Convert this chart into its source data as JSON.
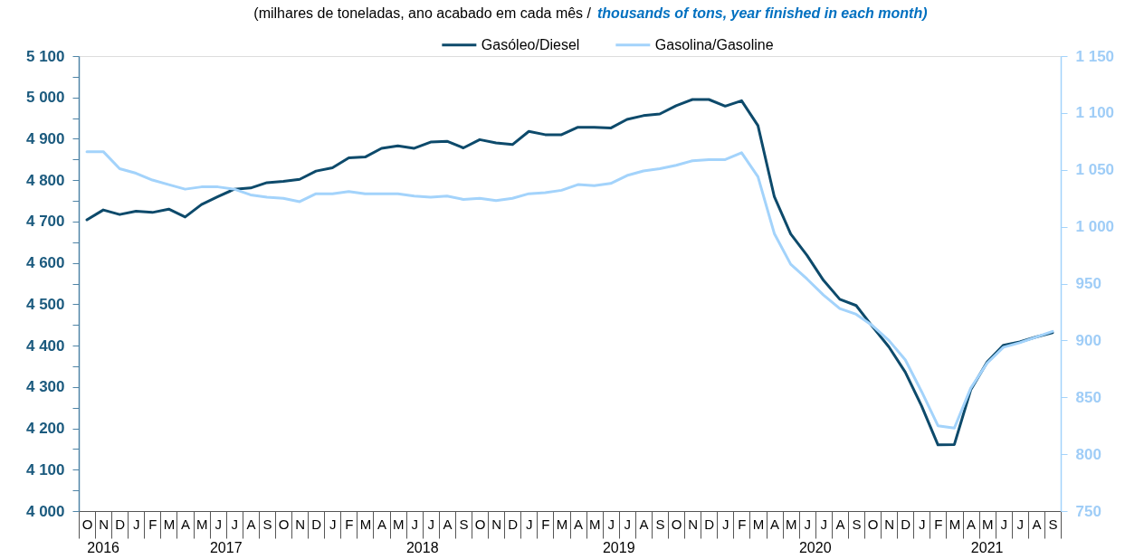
{
  "chart_data": {
    "type": "line",
    "title": "(milhares de toneladas, ano acabado em cada mês /",
    "subtitle": "thousands of tons, year finished in each month)",
    "categories": [
      "O",
      "N",
      "D",
      "J",
      "F",
      "M",
      "A",
      "M",
      "J",
      "J",
      "A",
      "S",
      "O",
      "N",
      "D",
      "J",
      "F",
      "M",
      "A",
      "M",
      "J",
      "J",
      "A",
      "S",
      "O",
      "N",
      "D",
      "J",
      "F",
      "M",
      "A",
      "M",
      "J",
      "J",
      "A",
      "S",
      "O",
      "N",
      "D",
      "J",
      "F",
      "M",
      "A",
      "M",
      "J",
      "J",
      "A",
      "S",
      "O",
      "N",
      "D",
      "J",
      "F",
      "M",
      "A",
      "M",
      "J",
      "J",
      "A",
      "S"
    ],
    "series": [
      {
        "name": "Gasóleo/Diesel",
        "color": "#0d4a6b",
        "values": [
          4704,
          4728,
          4717,
          4725,
          4722,
          4730,
          4711,
          4741,
          4760,
          4778,
          4781,
          4794,
          4797,
          4802,
          4822,
          4830,
          4854,
          4856,
          4877,
          4883,
          4877,
          4892,
          4894,
          4878,
          4898,
          4890,
          4886,
          4918,
          4910,
          4910,
          4928,
          4928,
          4926,
          4947,
          4956,
          4960,
          4980,
          4995,
          4995,
          4979,
          4992,
          4932,
          4760,
          4670,
          4618,
          4558,
          4512,
          4497,
          4446,
          4397,
          4336,
          4254,
          4160,
          4161,
          4293,
          4360,
          4401,
          4409,
          4421,
          4431
        ]
      },
      {
        "name": "Gasolina/Gasoline",
        "color": "#a3d3fb",
        "axis": "y2",
        "values": [
          1066,
          1066,
          1051,
          1047,
          1041,
          1037,
          1033,
          1035,
          1035,
          1033,
          1028,
          1026,
          1025,
          1022,
          1029,
          1029,
          1031,
          1029,
          1029,
          1029,
          1027,
          1026,
          1027,
          1024,
          1025,
          1023,
          1025,
          1029,
          1030,
          1032,
          1037,
          1036,
          1038,
          1045,
          1049,
          1051,
          1054,
          1058,
          1059,
          1059,
          1065,
          1044,
          994,
          967,
          954,
          940,
          928,
          923,
          913,
          900,
          883,
          855,
          825,
          823,
          858,
          880,
          894,
          898,
          903,
          908
        ]
      }
    ],
    "ylim": [
      4000,
      5100
    ],
    "yticks": [
      {
        "value": 4000,
        "label": "4 000"
      },
      {
        "value": 4050,
        "label": null
      },
      {
        "value": 4100,
        "label": "4 100"
      },
      {
        "value": 4150,
        "label": null
      },
      {
        "value": 4200,
        "label": "4 200"
      },
      {
        "value": 4250,
        "label": null
      },
      {
        "value": 4300,
        "label": "4 300"
      },
      {
        "value": 4350,
        "label": null
      },
      {
        "value": 4400,
        "label": "4 400"
      },
      {
        "value": 4450,
        "label": null
      },
      {
        "value": 4500,
        "label": "4 500"
      },
      {
        "value": 4550,
        "label": null
      },
      {
        "value": 4600,
        "label": "4 600"
      },
      {
        "value": 4650,
        "label": null
      },
      {
        "value": 4700,
        "label": "4 700"
      },
      {
        "value": 4750,
        "label": null
      },
      {
        "value": 4800,
        "label": "4 800"
      },
      {
        "value": 4850,
        "label": null
      },
      {
        "value": 4900,
        "label": "4 900"
      },
      {
        "value": 4950,
        "label": null
      },
      {
        "value": 5000,
        "label": "5 000"
      },
      {
        "value": 5050,
        "label": null
      },
      {
        "value": 5100,
        "label": "5 100"
      }
    ],
    "y2lim": [
      750,
      1150
    ],
    "y2ticks": [
      {
        "value": 750,
        "label": "750"
      },
      {
        "value": 800,
        "label": "800"
      },
      {
        "value": 850,
        "label": "850"
      },
      {
        "value": 900,
        "label": "900"
      },
      {
        "value": 950,
        "label": "950"
      },
      {
        "value": 1000,
        "label": "1 000"
      },
      {
        "value": 1050,
        "label": "1 050"
      },
      {
        "value": 1100,
        "label": "1 100"
      },
      {
        "value": 1150,
        "label": "1 150"
      }
    ],
    "annotations": [
      "2016",
      "2017",
      "2018",
      "2019",
      "2020",
      "2021"
    ],
    "legend": "top",
    "line_style": "solid"
  }
}
